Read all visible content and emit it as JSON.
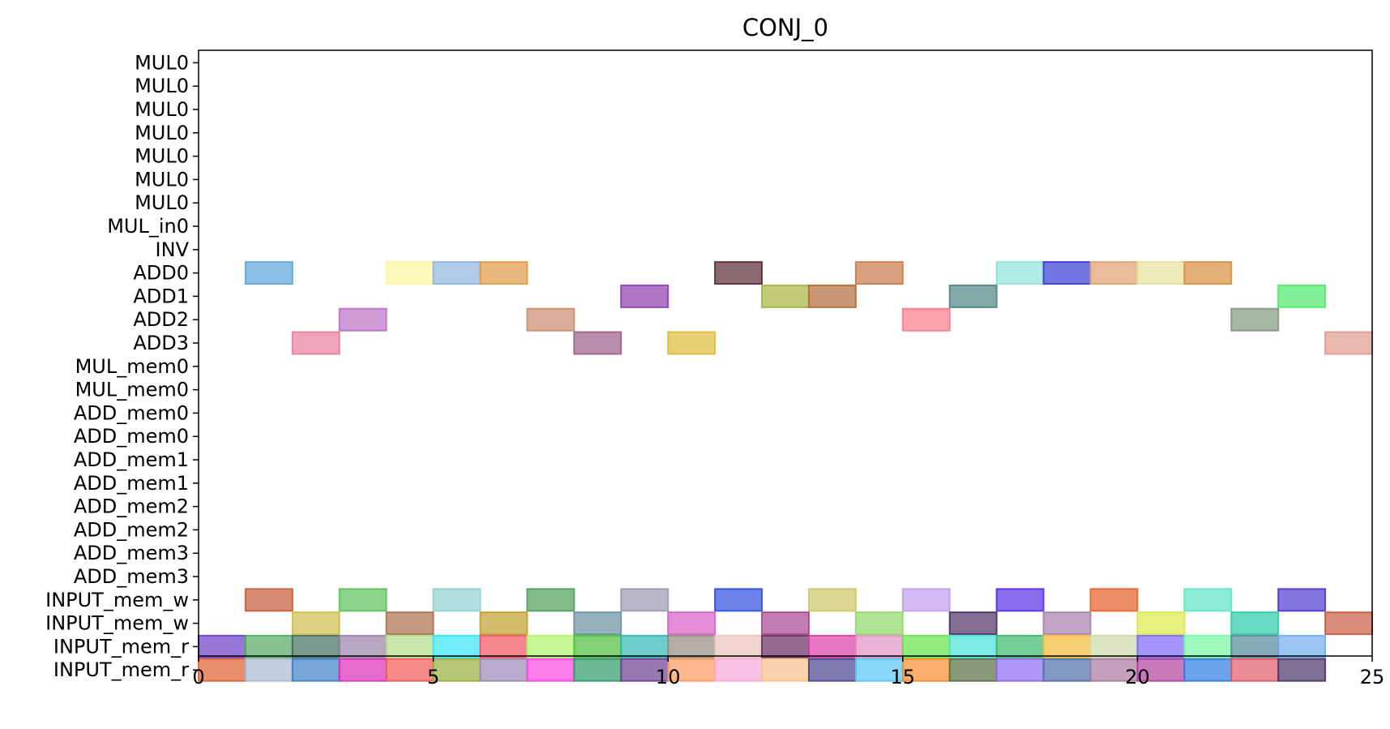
{
  "chart_data": {
    "type": "gantt",
    "title": "CONJ_0",
    "xlabel": "",
    "ylabel": "",
    "xlim": [
      0,
      25
    ],
    "xticks": [
      0,
      5,
      10,
      15,
      20,
      25
    ],
    "grid": false,
    "rows": [
      "MUL0",
      "MUL0",
      "MUL0",
      "MUL0",
      "MUL0",
      "MUL0",
      "MUL0",
      "MUL_in0",
      "INV",
      "ADD0",
      "ADD1",
      "ADD2",
      "ADD3",
      "MUL_mem0",
      "MUL_mem0",
      "ADD_mem0",
      "ADD_mem0",
      "ADD_mem1",
      "ADD_mem1",
      "ADD_mem2",
      "ADD_mem2",
      "ADD_mem3",
      "ADD_mem3",
      "INPUT_mem_w",
      "INPUT_mem_w",
      "INPUT_mem_r",
      "INPUT_mem_r"
    ],
    "tasks": [
      {
        "row": 9,
        "start": 1,
        "end": 2,
        "color": "#5DA5DA"
      },
      {
        "row": 9,
        "start": 4,
        "end": 5,
        "color": "#FFF59D"
      },
      {
        "row": 9,
        "start": 5,
        "end": 6,
        "color": "#90B4E0"
      },
      {
        "row": 9,
        "start": 6,
        "end": 7,
        "color": "#E09A45"
      },
      {
        "row": 9,
        "start": 11,
        "end": 12,
        "color": "#5A2A33"
      },
      {
        "row": 9,
        "start": 14,
        "end": 15,
        "color": "#C8794A"
      },
      {
        "row": 9,
        "start": 17,
        "end": 18,
        "color": "#8EE3DA"
      },
      {
        "row": 9,
        "start": 18,
        "end": 19,
        "color": "#3A3AD6"
      },
      {
        "row": 9,
        "start": 19,
        "end": 20,
        "color": "#E1A06F"
      },
      {
        "row": 9,
        "start": 20,
        "end": 21,
        "color": "#E4E19A"
      },
      {
        "row": 9,
        "start": 21,
        "end": 22,
        "color": "#D88F3F"
      },
      {
        "row": 10,
        "start": 9,
        "end": 10,
        "color": "#8D3DAE"
      },
      {
        "row": 10,
        "start": 12,
        "end": 13,
        "color": "#A5B33F"
      },
      {
        "row": 10,
        "start": 13,
        "end": 14,
        "color": "#B16C3A"
      },
      {
        "row": 10,
        "start": 16,
        "end": 17,
        "color": "#4F8584"
      },
      {
        "row": 10,
        "start": 23,
        "end": 24,
        "color": "#4FEA6C"
      },
      {
        "row": 11,
        "start": 3,
        "end": 4,
        "color": "#BC70C5"
      },
      {
        "row": 11,
        "start": 7,
        "end": 8,
        "color": "#CC8B6E"
      },
      {
        "row": 11,
        "start": 15,
        "end": 16,
        "color": "#F87A8C"
      },
      {
        "row": 11,
        "start": 22,
        "end": 23,
        "color": "#80987A"
      },
      {
        "row": 12,
        "start": 2,
        "end": 3,
        "color": "#E87E9B"
      },
      {
        "row": 12,
        "start": 8,
        "end": 9,
        "color": "#9D6088"
      },
      {
        "row": 12,
        "start": 10,
        "end": 11,
        "color": "#DCBA3A"
      },
      {
        "row": 12,
        "start": 24,
        "end": 25,
        "color": "#E09A8D"
      },
      {
        "row": 23,
        "start": 1,
        "end": 2,
        "color": "#C95A36"
      },
      {
        "row": 23,
        "start": 3,
        "end": 4,
        "color": "#5DC15A"
      },
      {
        "row": 23,
        "start": 5,
        "end": 6,
        "color": "#8ED2D0"
      },
      {
        "row": 23,
        "start": 7,
        "end": 8,
        "color": "#4E9E5A"
      },
      {
        "row": 23,
        "start": 9,
        "end": 10,
        "color": "#9A9AAF"
      },
      {
        "row": 23,
        "start": 11,
        "end": 12,
        "color": "#2E4FE0"
      },
      {
        "row": 23,
        "start": 13,
        "end": 14,
        "color": "#CCC869"
      },
      {
        "row": 23,
        "start": 15,
        "end": 16,
        "color": "#C19DEC"
      },
      {
        "row": 23,
        "start": 17,
        "end": 18,
        "color": "#5530E8"
      },
      {
        "row": 23,
        "start": 19,
        "end": 20,
        "color": "#E8602A"
      },
      {
        "row": 23,
        "start": 21,
        "end": 22,
        "color": "#5EE5C3"
      },
      {
        "row": 23,
        "start": 23,
        "end": 24,
        "color": "#4E3AD1"
      },
      {
        "row": 24,
        "start": 2,
        "end": 3,
        "color": "#CDBE4A"
      },
      {
        "row": 24,
        "start": 4,
        "end": 5,
        "color": "#A8714C"
      },
      {
        "row": 24,
        "start": 6,
        "end": 7,
        "color": "#C0A02C"
      },
      {
        "row": 24,
        "start": 8,
        "end": 9,
        "color": "#6A8FA0"
      },
      {
        "row": 24,
        "start": 10,
        "end": 11,
        "color": "#DA5EC8"
      },
      {
        "row": 24,
        "start": 12,
        "end": 13,
        "color": "#A64690"
      },
      {
        "row": 24,
        "start": 14,
        "end": 15,
        "color": "#8FD967"
      },
      {
        "row": 24,
        "start": 16,
        "end": 17,
        "color": "#4E3066"
      },
      {
        "row": 24,
        "start": 18,
        "end": 19,
        "color": "#A87FAE"
      },
      {
        "row": 24,
        "start": 20,
        "end": 21,
        "color": "#DCE94A"
      },
      {
        "row": 24,
        "start": 22,
        "end": 23,
        "color": "#2CCBA8"
      },
      {
        "row": 24,
        "start": 24,
        "end": 25,
        "color": "#C85A40"
      },
      {
        "row": 25,
        "start": 0,
        "end": 1,
        "color": "#6A3DC7"
      },
      {
        "row": 25,
        "start": 1,
        "end": 2,
        "color": "#52AA63"
      },
      {
        "row": 25,
        "start": 2,
        "end": 3,
        "color": "#466F5F"
      },
      {
        "row": 25,
        "start": 3,
        "end": 4,
        "color": "#9982A5"
      },
      {
        "row": 25,
        "start": 4,
        "end": 5,
        "color": "#B0DD89"
      },
      {
        "row": 25,
        "start": 5,
        "end": 6,
        "color": "#33E5F5"
      },
      {
        "row": 25,
        "start": 6,
        "end": 7,
        "color": "#F4525F"
      },
      {
        "row": 25,
        "start": 7,
        "end": 8,
        "color": "#AEF76A"
      },
      {
        "row": 25,
        "start": 8,
        "end": 9,
        "color": "#4BBE3A"
      },
      {
        "row": 25,
        "start": 9,
        "end": 10,
        "color": "#31B7B5"
      },
      {
        "row": 25,
        "start": 10,
        "end": 11,
        "color": "#958A80"
      },
      {
        "row": 25,
        "start": 11,
        "end": 12,
        "color": "#EBC3BA"
      },
      {
        "row": 25,
        "start": 12,
        "end": 13,
        "color": "#6A2C63"
      },
      {
        "row": 25,
        "start": 13,
        "end": 14,
        "color": "#DD3BA6"
      },
      {
        "row": 25,
        "start": 14,
        "end": 15,
        "color": "#E091C1"
      },
      {
        "row": 25,
        "start": 15,
        "end": 16,
        "color": "#64E64A"
      },
      {
        "row": 25,
        "start": 16,
        "end": 17,
        "color": "#49E3DA"
      },
      {
        "row": 25,
        "start": 17,
        "end": 18,
        "color": "#3CB868"
      },
      {
        "row": 25,
        "start": 18,
        "end": 19,
        "color": "#F5BB3A"
      },
      {
        "row": 25,
        "start": 19,
        "end": 20,
        "color": "#CDD9A6"
      },
      {
        "row": 25,
        "start": 20,
        "end": 21,
        "color": "#7C68F8"
      },
      {
        "row": 25,
        "start": 21,
        "end": 22,
        "color": "#73F6A2"
      },
      {
        "row": 25,
        "start": 22,
        "end": 23,
        "color": "#538998"
      },
      {
        "row": 25,
        "start": 23,
        "end": 24,
        "color": "#72ADEE"
      },
      {
        "row": 26,
        "start": 0,
        "end": 1,
        "color": "#E05F31"
      },
      {
        "row": 26,
        "start": 1,
        "end": 2,
        "color": "#A9BACF"
      },
      {
        "row": 26,
        "start": 2,
        "end": 3,
        "color": "#3F80C4"
      },
      {
        "row": 26,
        "start": 3,
        "end": 4,
        "color": "#DC2FB8"
      },
      {
        "row": 26,
        "start": 4,
        "end": 5,
        "color": "#F45A58"
      },
      {
        "row": 26,
        "start": 5,
        "end": 6,
        "color": "#96AF3A"
      },
      {
        "row": 26,
        "start": 6,
        "end": 7,
        "color": "#9B88B5"
      },
      {
        "row": 26,
        "start": 7,
        "end": 8,
        "color": "#FF44E2"
      },
      {
        "row": 26,
        "start": 8,
        "end": 9,
        "color": "#2E9A6A"
      },
      {
        "row": 26,
        "start": 9,
        "end": 10,
        "color": "#6E3D90"
      },
      {
        "row": 26,
        "start": 10,
        "end": 11,
        "color": "#FF9860"
      },
      {
        "row": 26,
        "start": 11,
        "end": 12,
        "color": "#F7A8D6"
      },
      {
        "row": 26,
        "start": 12,
        "end": 13,
        "color": "#F8C08A"
      },
      {
        "row": 26,
        "start": 13,
        "end": 14,
        "color": "#49428F"
      },
      {
        "row": 26,
        "start": 14,
        "end": 15,
        "color": "#56C6F6"
      },
      {
        "row": 26,
        "start": 15,
        "end": 16,
        "color": "#F58C2E"
      },
      {
        "row": 26,
        "start": 16,
        "end": 17,
        "color": "#5A6E43"
      },
      {
        "row": 26,
        "start": 17,
        "end": 18,
        "color": "#8B6BF2"
      },
      {
        "row": 26,
        "start": 18,
        "end": 19,
        "color": "#4F6DA8"
      },
      {
        "row": 26,
        "start": 19,
        "end": 20,
        "color": "#A9799F"
      },
      {
        "row": 26,
        "start": 20,
        "end": 21,
        "color": "#B0409F"
      },
      {
        "row": 26,
        "start": 21,
        "end": 22,
        "color": "#2C7DE1"
      },
      {
        "row": 26,
        "start": 22,
        "end": 23,
        "color": "#DF5B69"
      },
      {
        "row": 26,
        "start": 23,
        "end": 24,
        "color": "#4A3566"
      }
    ]
  }
}
